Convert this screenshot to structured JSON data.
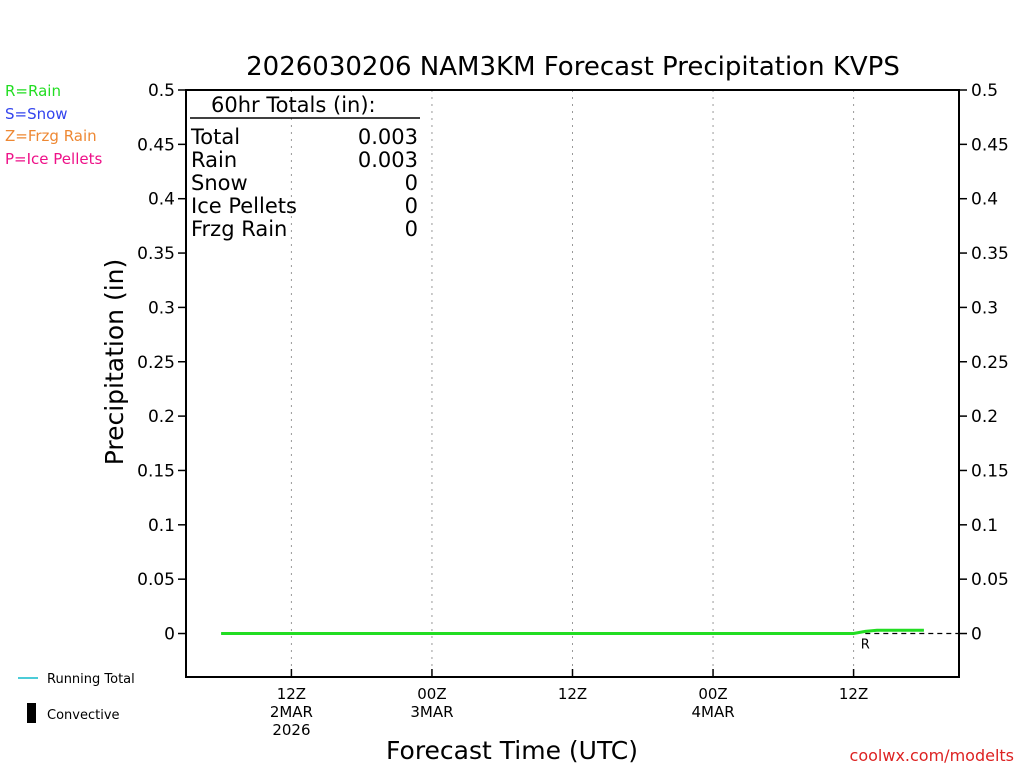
{
  "colors": {
    "rain": "#22dd22",
    "snow": "#3344ee",
    "frzg_rain": "#ee8833",
    "ice_pellets": "#ee1188",
    "running_total": "#11bbcc",
    "convective": "#000000",
    "credit": "#dd2222"
  },
  "legend": {
    "rain": "R=Rain",
    "snow": "S=Snow",
    "frzg_rain": "Z=Frzg Rain",
    "ice_pellets": "P=Ice Pellets"
  },
  "bottom_legend": {
    "running_total": "Running Total",
    "convective": "Convective"
  },
  "totals": {
    "header": "60hr Totals (in):",
    "rows": [
      {
        "label": "Total",
        "value": "0.003"
      },
      {
        "label": "Rain",
        "value": "0.003"
      },
      {
        "label": "Snow",
        "value": "0"
      },
      {
        "label": "Ice Pellets",
        "value": "0"
      },
      {
        "label": "Frzg Rain",
        "value": "0"
      }
    ]
  },
  "credit": "coolwx.com/modelts",
  "chart_data": {
    "type": "line",
    "title": "2026030206 NAM3KM Forecast Precipitation KVPS",
    "xlabel": "Forecast Time (UTC)",
    "ylabel": "Precipitation (in)",
    "ylim": [
      -0.04,
      0.5
    ],
    "yticks": [
      "0.5",
      "0.45",
      "0.4",
      "0.35",
      "0.3",
      "0.25",
      "0.2",
      "0.15",
      "0.1",
      "0.05",
      "0"
    ],
    "xlim_hours": [
      -3,
      63
    ],
    "xticks": [
      {
        "hour": 6,
        "lines": [
          "12Z",
          "2MAR",
          "2026"
        ]
      },
      {
        "hour": 18,
        "lines": [
          "00Z",
          "3MAR"
        ]
      },
      {
        "hour": 30,
        "lines": [
          "12Z"
        ]
      },
      {
        "hour": 42,
        "lines": [
          "00Z",
          "4MAR"
        ]
      },
      {
        "hour": 54,
        "lines": [
          "12Z"
        ]
      }
    ],
    "grid": "vertical dotted",
    "series": [
      {
        "name": "Running Total",
        "x": [
          0,
          54,
          55,
          56,
          57,
          60
        ],
        "y": [
          0,
          0,
          0.002,
          0.003,
          0.003,
          0.003
        ]
      },
      {
        "name": "Rain",
        "x": [
          0,
          54,
          55,
          56,
          57,
          60
        ],
        "y": [
          0,
          0,
          0.002,
          0.003,
          0.003,
          0.003
        ]
      }
    ],
    "precip_type_markers": [
      {
        "hour": 55,
        "label": "R"
      }
    ]
  }
}
